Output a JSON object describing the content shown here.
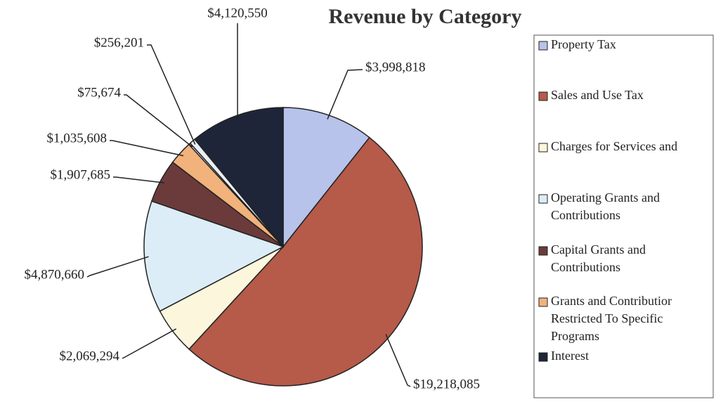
{
  "chart_data": {
    "type": "pie",
    "title": "Revenue by Category",
    "categories": [
      "Property Tax",
      "Sales and Use Tax",
      "Charges for Services and",
      "Operating Grants and Contributions",
      "Capital Grants and Contributions",
      "Grants and Contributior Restricted To Specific Programs",
      null,
      null,
      "Interest"
    ],
    "values": [
      3998818,
      19218085,
      2069294,
      4870660,
      1907685,
      1035608,
      75674,
      256201,
      4120550
    ],
    "value_labels": [
      "$3,998,818",
      "$19,218,085",
      "$2,069,294",
      "$4,870,660",
      "$1,907,685",
      "$1,035,608",
      "$75,674",
      "$256,201",
      "$4,120,550"
    ],
    "colors": [
      "#b7c3ea",
      "#b65a49",
      "#fbf6dc",
      "#dcedf7",
      "#6b3b3b",
      "#f1b27c",
      "#ffffff",
      "#e8eef4",
      "#1e2538"
    ],
    "legend": "right"
  }
}
